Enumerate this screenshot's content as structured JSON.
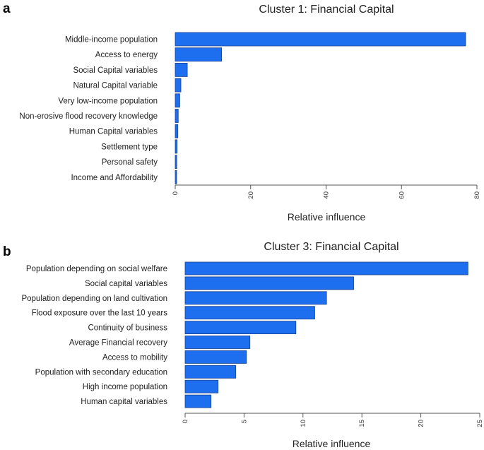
{
  "chart_data": [
    {
      "type": "bar",
      "orientation": "horizontal",
      "panel_label": "a",
      "title": "Cluster 1: Financial Capital",
      "xlabel": "Relative influence",
      "ylabel": "",
      "xlim": [
        0,
        80
      ],
      "xticks": [
        0,
        20,
        40,
        60,
        80
      ],
      "xtick_labels": [
        "0",
        "20",
        "40",
        "60",
        "80"
      ],
      "categories": [
        "Middle-income population",
        "Access to energy",
        "Social Capital variables",
        "Natural Capital variable",
        "Very low-income population",
        "Non-erosive flood recovery knowledge",
        "Human Capital variables",
        "Settlement type",
        "Personal safety",
        "Income and Affordability"
      ],
      "values": [
        77,
        12.3,
        3.2,
        1.5,
        1.2,
        0.8,
        0.7,
        0.5,
        0.4,
        0.3
      ],
      "bar_color": "#1e6ff0",
      "grid": false
    },
    {
      "type": "bar",
      "orientation": "horizontal",
      "panel_label": "b",
      "title": "Cluster 3: Financial Capital",
      "xlabel": "Relative influence",
      "ylabel": "",
      "xlim": [
        0,
        25
      ],
      "xticks": [
        0,
        5,
        10,
        15,
        20,
        25
      ],
      "xtick_labels": [
        "0",
        "5",
        "10",
        "15",
        "20",
        "25"
      ],
      "categories": [
        "Population depending on social welfare",
        "Social capital variables",
        "Population depending on land cultivation",
        "Flood exposure over the last 10 years",
        "Continuity of business",
        "Average Financial recovery",
        "Access to mobility",
        "Population with secondary education",
        "High income population",
        "Human capital variables"
      ],
      "values": [
        24,
        14.3,
        12,
        11,
        9.4,
        5.5,
        5.2,
        4.3,
        2.8,
        2.2
      ],
      "bar_color": "#1e6ff0",
      "grid": false
    }
  ]
}
